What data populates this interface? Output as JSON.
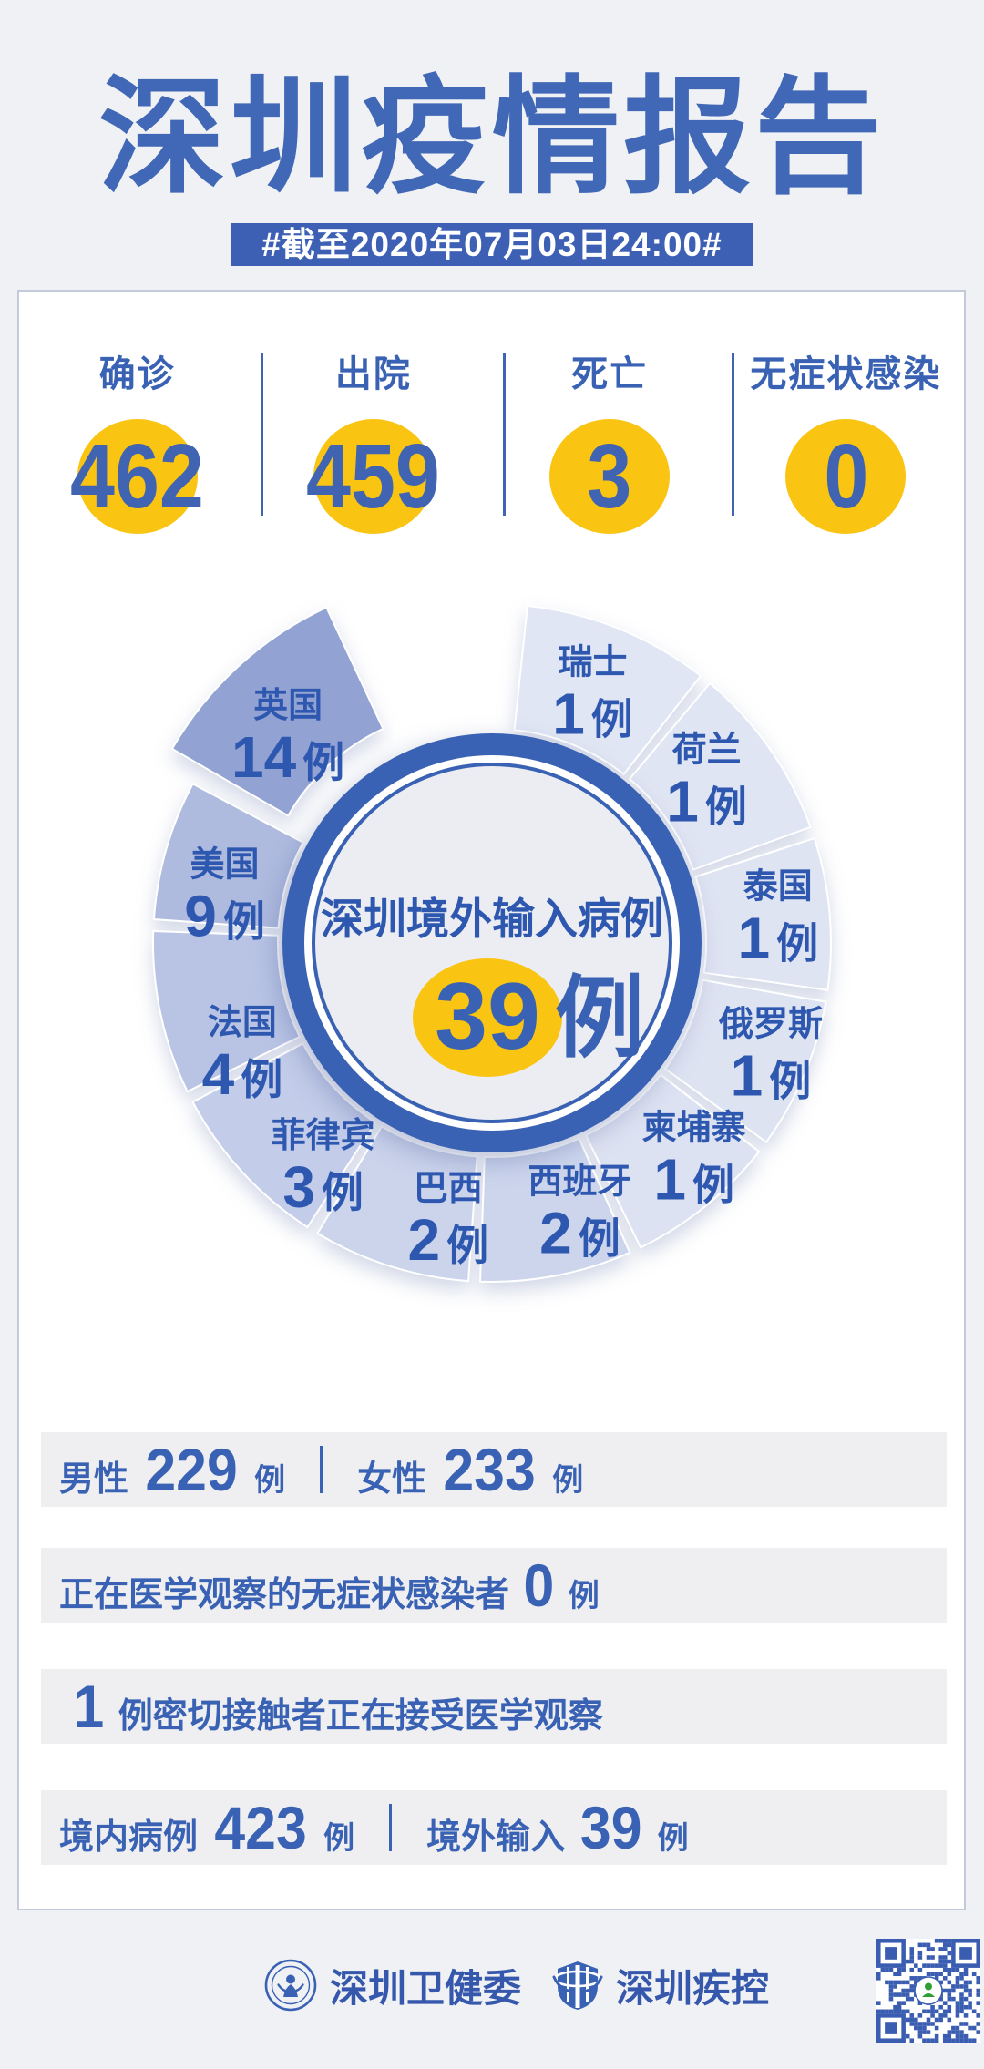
{
  "page": {
    "title": "深圳疫情报告",
    "date_banner": "#截至2020年07月03日24:00#"
  },
  "colors": {
    "accent_blue": "#3a62b4",
    "number_blue": "#4064b1",
    "accent_yellow": "#f9c412",
    "banner_blue": "#3d60b5",
    "strip_gray": "#efeff1",
    "page_bg": "#f0f1f4"
  },
  "summary_stats": [
    {
      "label": "确诊",
      "value": "462"
    },
    {
      "label": "出院",
      "value": "459"
    },
    {
      "label": "死亡",
      "value": "3"
    },
    {
      "label": "无症状感染",
      "value": "0"
    }
  ],
  "chart_data": {
    "type": "pie",
    "title": "深圳境外输入病例",
    "total": 39,
    "unit": "例",
    "center_label": {
      "title": "深圳境外输入病例",
      "value": "39",
      "unit": "例"
    },
    "legend_position": "on-slice",
    "slices": [
      {
        "name": "瑞士",
        "value": 1,
        "unit": "例",
        "color": "#e1e6f4",
        "a0": 6,
        "a1": 38,
        "labelA": 22,
        "labelR": 295
      },
      {
        "name": "荷兰",
        "value": 1,
        "unit": "例",
        "color": "#e0e5f3",
        "a0": 40,
        "a1": 70,
        "labelA": 53,
        "labelR": 295
      },
      {
        "name": "泰国",
        "value": 1,
        "unit": "例",
        "color": "#dfe4f3",
        "a0": 72,
        "a1": 98,
        "labelA": 85,
        "labelR": 315
      },
      {
        "name": "俄罗斯",
        "value": 1,
        "unit": "例",
        "color": "#dee3f2",
        "a0": 100,
        "a1": 126,
        "labelA": 112,
        "labelR": 330
      },
      {
        "name": "柬埔寨",
        "value": 1,
        "unit": "例",
        "color": "#dde2f2",
        "a0": 128,
        "a1": 154,
        "labelA": 137,
        "labelR": 325
      },
      {
        "name": "西班牙",
        "value": 2,
        "unit": "例",
        "color": "#cdd5ed",
        "a0": 156,
        "a1": 182,
        "labelA": 162,
        "labelR": 312
      },
      {
        "name": "巴西",
        "value": 2,
        "unit": "例",
        "color": "#ccd4ec",
        "a0": 184,
        "a1": 211,
        "labelA": 189,
        "labelR": 308
      },
      {
        "name": "菲律宾",
        "value": 3,
        "unit": "例",
        "color": "#c3cce9",
        "a0": 213,
        "a1": 242,
        "labelA": 217,
        "labelR": 308
      },
      {
        "name": "法国",
        "value": 4,
        "unit": "例",
        "color": "#b9c4e5",
        "a0": 244,
        "a1": 272,
        "labelA": 246,
        "labelR": 300
      },
      {
        "name": "美国",
        "value": 9,
        "unit": "例",
        "color": "#aebade",
        "a0": 274,
        "a1": 298,
        "labelA": 280,
        "labelR": 298
      },
      {
        "name": "英国",
        "value": 14,
        "unit": "例",
        "color": "#92a2d2",
        "a0": 300,
        "a1": 335,
        "labelA": 315,
        "labelR": 288,
        "explode": 30,
        "outerR": 382
      }
    ]
  },
  "detail_rows": [
    {
      "segments": [
        {
          "label": "男性",
          "value": "229",
          "unit": "例"
        },
        {
          "label": "女性",
          "value": "233",
          "unit": "例"
        }
      ]
    },
    {
      "segments": [
        {
          "label": "正在医学观察的无症状感染者",
          "value": "0",
          "unit": "例"
        }
      ]
    },
    {
      "segments": [
        {
          "value": "1",
          "post": "例密切接触者正在接受医学观察"
        }
      ]
    },
    {
      "segments": [
        {
          "label": "境内病例",
          "value": "423",
          "unit": "例"
        },
        {
          "label": "境外输入",
          "value": "39",
          "unit": "例"
        }
      ]
    }
  ],
  "footer": {
    "org1": "深圳卫健委",
    "org2": "深圳疾控"
  }
}
